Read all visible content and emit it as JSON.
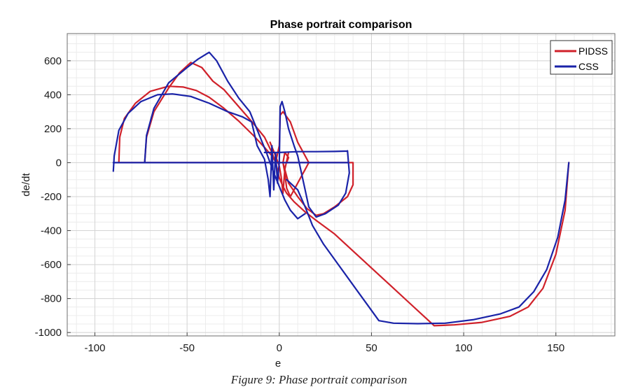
{
  "caption": "Figure 9: Phase portrait comparison",
  "chart_data": {
    "type": "line",
    "title": "Phase portrait comparison",
    "xlabel": "e",
    "ylabel": "de/dt",
    "xlim": [
      -115,
      182
    ],
    "ylim": [
      -1020,
      760
    ],
    "x_ticks": [
      -100,
      -50,
      0,
      50,
      100,
      150
    ],
    "y_ticks": [
      -1000,
      -800,
      -600,
      -400,
      -200,
      0,
      200,
      400,
      600
    ],
    "grid": true,
    "minor_grid": true,
    "legend_position": "top-right",
    "series": [
      {
        "name": "PIDSS",
        "color": "#d0212a",
        "points": [
          [
            -87,
            0
          ],
          [
            -86.5,
            150
          ],
          [
            -84,
            260
          ],
          [
            -78,
            350
          ],
          [
            -70,
            420
          ],
          [
            -60,
            450
          ],
          [
            -52,
            445
          ],
          [
            -45,
            425
          ],
          [
            -38,
            385
          ],
          [
            -30,
            320
          ],
          [
            -22,
            245
          ],
          [
            -14,
            160
          ],
          [
            -8,
            90
          ],
          [
            -4,
            40
          ],
          [
            -2,
            5
          ],
          [
            -1,
            -40
          ],
          [
            0,
            -90
          ],
          [
            2,
            -140
          ],
          [
            4,
            -180
          ],
          [
            8,
            -230
          ],
          [
            14,
            -290
          ],
          [
            20,
            -340
          ],
          [
            30,
            -420
          ],
          [
            40,
            -520
          ],
          [
            50,
            -620
          ],
          [
            60,
            -720
          ],
          [
            70,
            -820
          ],
          [
            78,
            -900
          ],
          [
            84,
            -960
          ],
          [
            95,
            -955
          ],
          [
            110,
            -940
          ],
          [
            125,
            -905
          ],
          [
            135,
            -850
          ],
          [
            143,
            -740
          ],
          [
            150,
            -540
          ],
          [
            155,
            -280
          ],
          [
            157,
            0
          ],
          null,
          [
            -73,
            0
          ],
          [
            -72,
            150
          ],
          [
            -68,
            300
          ],
          [
            -60,
            440
          ],
          [
            -54,
            530
          ],
          [
            -48,
            590
          ],
          [
            -42,
            560
          ],
          [
            -36,
            480
          ],
          [
            -30,
            430
          ],
          [
            -22,
            330
          ],
          [
            -14,
            230
          ],
          [
            -8,
            150
          ],
          [
            -4,
            60
          ],
          [
            -2,
            0
          ],
          [
            0,
            100
          ],
          [
            0.5,
            280
          ],
          [
            2,
            300
          ],
          [
            6,
            240
          ],
          [
            10,
            120
          ],
          [
            14,
            40
          ],
          [
            16,
            0
          ],
          [
            14,
            -40
          ],
          [
            10,
            -120
          ],
          [
            6,
            -200
          ],
          [
            4,
            -150
          ],
          [
            3,
            -60
          ],
          [
            2,
            0
          ],
          [
            3,
            60
          ],
          [
            5,
            30
          ],
          [
            4,
            0
          ],
          null,
          [
            -87,
            0
          ],
          [
            40,
            0
          ],
          [
            40,
            -130
          ],
          [
            37,
            -200
          ],
          [
            30,
            -260
          ],
          [
            24,
            -300
          ],
          [
            20,
            -310
          ],
          [
            15,
            -270
          ],
          [
            10,
            -200
          ],
          [
            5,
            -120
          ],
          [
            2,
            0
          ],
          null,
          [
            -5,
            120
          ],
          [
            -2,
            40
          ],
          [
            0,
            -20
          ],
          [
            1,
            -80
          ],
          [
            2,
            -180
          ],
          [
            3,
            -40
          ],
          [
            5,
            60
          ]
        ]
      },
      {
        "name": "CSS",
        "color": "#1a23a8",
        "points": [
          [
            -90,
            -50
          ],
          [
            -89.5,
            40
          ],
          [
            -87,
            190
          ],
          [
            -82,
            290
          ],
          [
            -75,
            360
          ],
          [
            -66,
            400
          ],
          [
            -58,
            405
          ],
          [
            -48,
            390
          ],
          [
            -38,
            350
          ],
          [
            -28,
            300
          ],
          [
            -20,
            270
          ],
          [
            -15,
            240
          ],
          [
            -12,
            100
          ],
          [
            -8,
            20
          ],
          [
            -6,
            -100
          ],
          [
            -5,
            -200
          ],
          [
            -4,
            100
          ],
          [
            -3,
            -160
          ],
          [
            -2,
            60
          ],
          [
            -1,
            -120
          ],
          [
            0,
            0
          ],
          [
            0.5,
            330
          ],
          [
            1.5,
            360
          ],
          [
            3,
            300
          ],
          [
            5,
            200
          ],
          [
            8,
            100
          ],
          [
            10,
            40
          ],
          [
            12,
            -60
          ],
          [
            14,
            -160
          ],
          [
            16,
            -260
          ],
          [
            20,
            -320
          ],
          [
            25,
            -300
          ],
          [
            32,
            -250
          ],
          [
            36,
            -180
          ],
          [
            38,
            -60
          ],
          [
            37,
            70
          ],
          null,
          [
            -73,
            0
          ],
          [
            -72,
            160
          ],
          [
            -68,
            320
          ],
          [
            -60,
            470
          ],
          [
            -50,
            560
          ],
          [
            -44,
            610
          ],
          [
            -38,
            650
          ],
          [
            -34,
            600
          ],
          [
            -28,
            480
          ],
          [
            -22,
            380
          ],
          [
            -16,
            300
          ],
          [
            -13,
            220
          ],
          [
            -10,
            140
          ],
          [
            -7,
            60
          ],
          [
            -5,
            0
          ],
          [
            -3,
            -60
          ],
          [
            0,
            -140
          ],
          [
            3,
            -220
          ],
          [
            6,
            -280
          ],
          [
            10,
            -330
          ],
          [
            14,
            -300
          ],
          null,
          [
            -90,
            0
          ],
          [
            37,
            0
          ],
          null,
          [
            -8,
            60
          ],
          [
            -4,
            60
          ],
          [
            0,
            60
          ],
          [
            10,
            65
          ],
          [
            20,
            65
          ],
          [
            30,
            66
          ],
          [
            37,
            68
          ],
          null,
          [
            4,
            -100
          ],
          [
            10,
            -160
          ],
          [
            14,
            -260
          ],
          [
            18,
            -370
          ],
          [
            24,
            -480
          ],
          [
            32,
            -600
          ],
          [
            40,
            -720
          ],
          [
            48,
            -840
          ],
          [
            54,
            -930
          ],
          [
            62,
            -945
          ],
          [
            75,
            -948
          ],
          [
            90,
            -945
          ],
          [
            105,
            -925
          ],
          [
            120,
            -890
          ],
          [
            130,
            -850
          ],
          [
            138,
            -760
          ],
          [
            145,
            -630
          ],
          [
            151,
            -440
          ],
          [
            155,
            -220
          ],
          [
            157,
            0
          ]
        ]
      }
    ]
  }
}
